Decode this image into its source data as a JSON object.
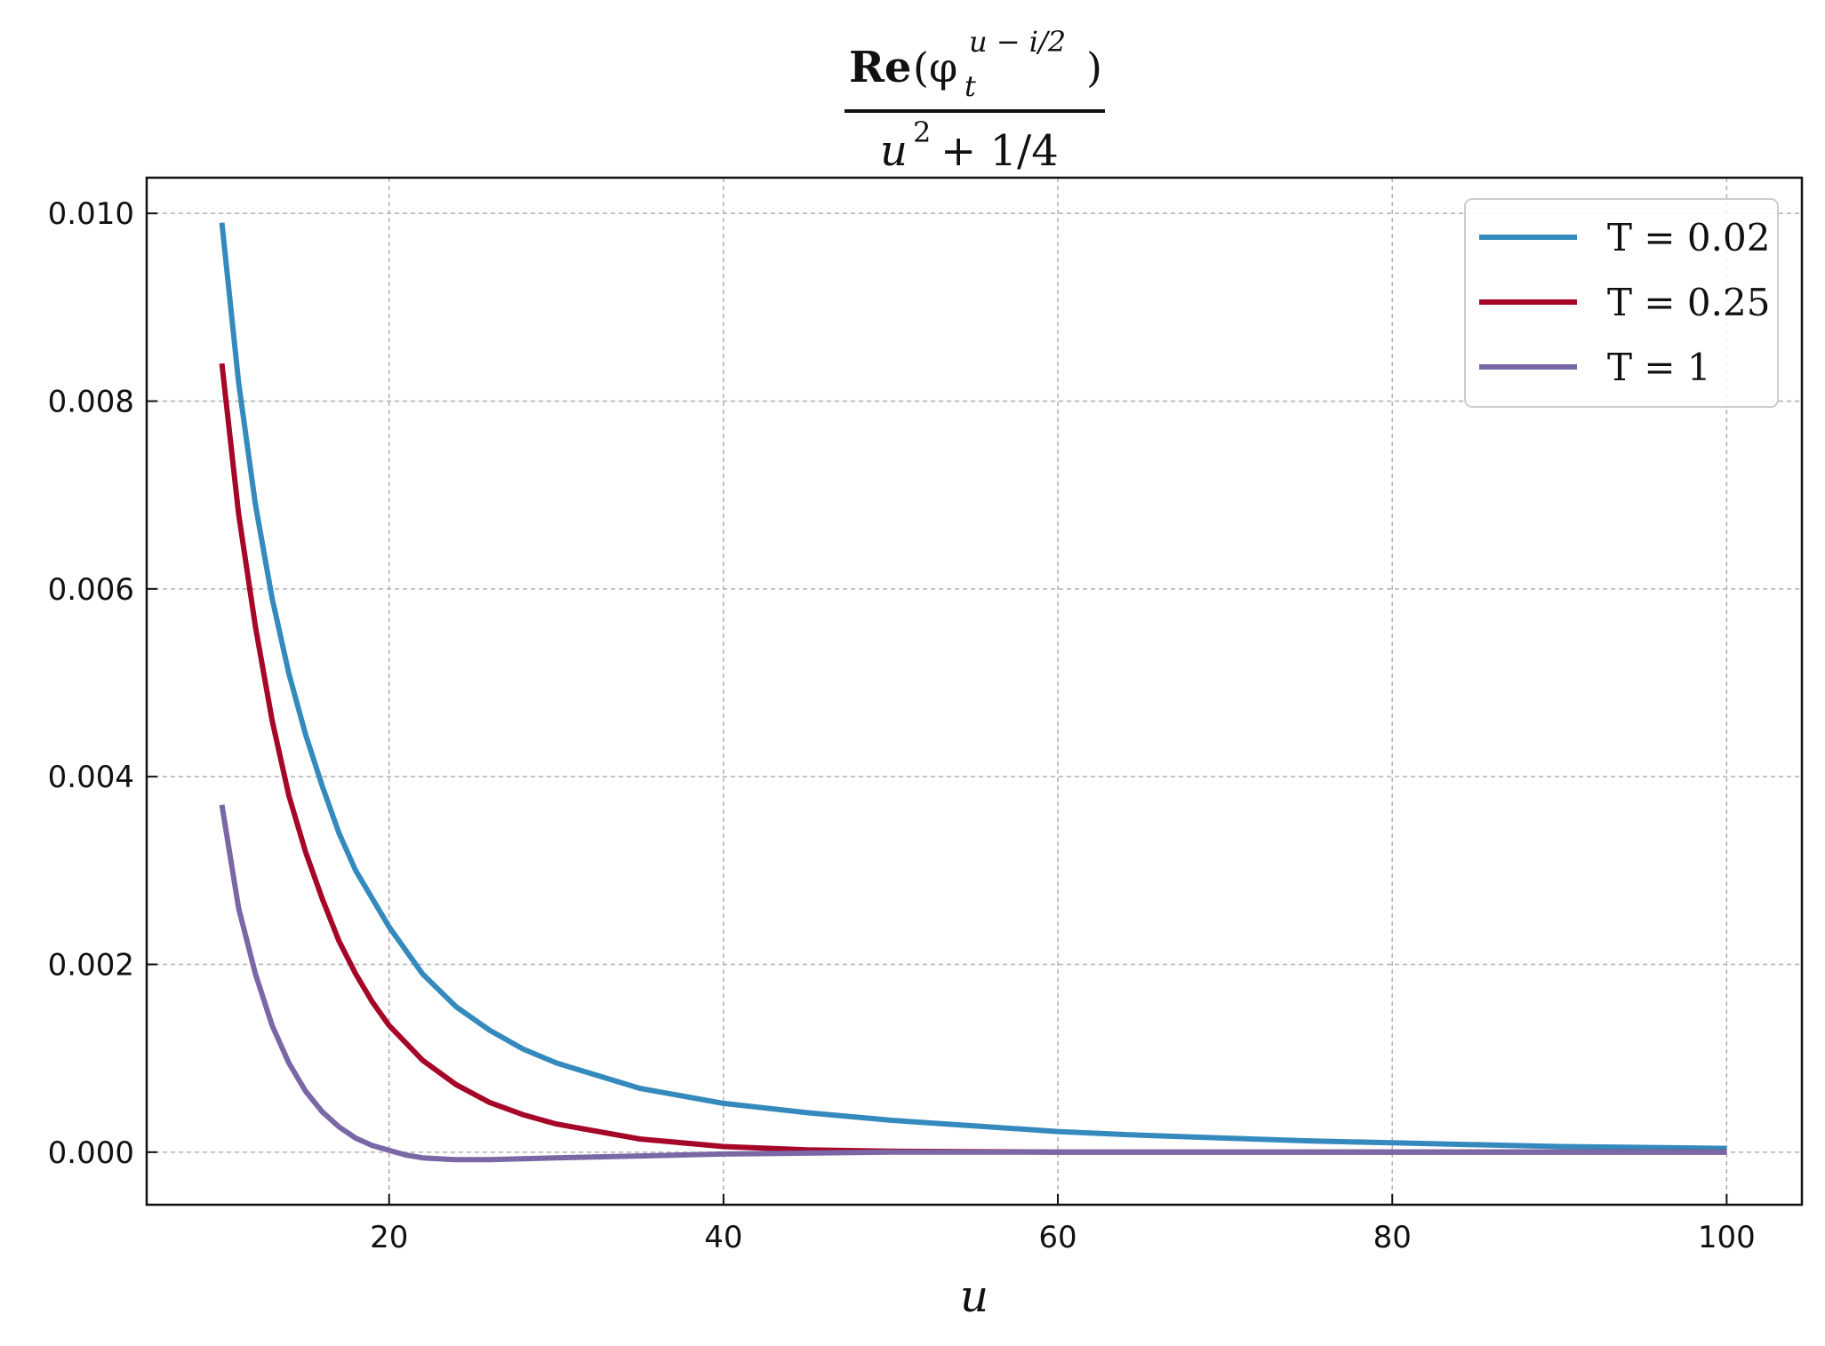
{
  "chart_data": {
    "type": "line",
    "title": {
      "numerator_main": "Re",
      "numerator_open": "(φ",
      "numerator_sub": "t",
      "numerator_sup": "u − i/2",
      "numerator_close": ")",
      "denominator_base": "u",
      "denominator_sup": "2",
      "denominator_rest": "+ 1/4"
    },
    "xlabel": "u",
    "ylabel": "",
    "xlim": [
      5.5,
      104.5
    ],
    "ylim": [
      -0.00056,
      0.01038
    ],
    "x_ticks": [
      20,
      40,
      60,
      80,
      100
    ],
    "x_tick_labels": [
      "20",
      "40",
      "60",
      "80",
      "100"
    ],
    "y_ticks": [
      0.0,
      0.002,
      0.004,
      0.006,
      0.008,
      0.01
    ],
    "y_tick_labels": [
      "0.000",
      "0.002",
      "0.004",
      "0.006",
      "0.008",
      "0.010"
    ],
    "grid": true,
    "legend_position": "top-right",
    "series": [
      {
        "name": "T = 0.02",
        "color": "#348abd",
        "x": [
          10,
          11,
          12,
          13,
          14,
          15,
          16,
          17,
          18,
          19,
          20,
          22,
          24,
          26,
          28,
          30,
          35,
          40,
          45,
          50,
          55,
          60,
          65,
          70,
          75,
          80,
          85,
          90,
          95,
          100
        ],
        "y": [
          0.0099,
          0.0082,
          0.0069,
          0.0059,
          0.0051,
          0.00445,
          0.0039,
          0.0034,
          0.003,
          0.0027,
          0.0024,
          0.0019,
          0.00155,
          0.0013,
          0.0011,
          0.00095,
          0.00068,
          0.00052,
          0.00042,
          0.00034,
          0.00028,
          0.00022,
          0.00018,
          0.00015,
          0.00012,
          0.0001,
          8e-05,
          6e-05,
          5e-05,
          4e-05
        ]
      },
      {
        "name": "T = 0.25",
        "color": "#a60628",
        "x": [
          10,
          11,
          12,
          13,
          14,
          15,
          16,
          17,
          18,
          19,
          20,
          22,
          24,
          26,
          28,
          30,
          35,
          40,
          45,
          50,
          60,
          70,
          80,
          90,
          100
        ],
        "y": [
          0.0084,
          0.0068,
          0.0056,
          0.0046,
          0.0038,
          0.0032,
          0.0027,
          0.00225,
          0.0019,
          0.0016,
          0.00135,
          0.00098,
          0.00072,
          0.00053,
          0.0004,
          0.0003,
          0.00014,
          6e-05,
          2.5e-05,
          1e-05,
          0.0,
          0.0,
          0.0,
          0.0,
          0.0
        ]
      },
      {
        "name": "T = 1",
        "color": "#7a68a6",
        "x": [
          10,
          11,
          12,
          13,
          14,
          15,
          16,
          17,
          18,
          19,
          20,
          21,
          22,
          24,
          26,
          28,
          30,
          35,
          40,
          45,
          50,
          60,
          70,
          80,
          90,
          100
        ],
        "y": [
          0.0037,
          0.0026,
          0.0019,
          0.00135,
          0.00095,
          0.00065,
          0.00043,
          0.00027,
          0.00015,
          7e-05,
          2e-05,
          -3e-05,
          -6e-05,
          -8e-05,
          -8e-05,
          -7e-05,
          -6e-05,
          -4e-05,
          -2e-05,
          -1e-05,
          0.0,
          0.0,
          0.0,
          0.0,
          0.0,
          0.0
        ]
      }
    ]
  }
}
